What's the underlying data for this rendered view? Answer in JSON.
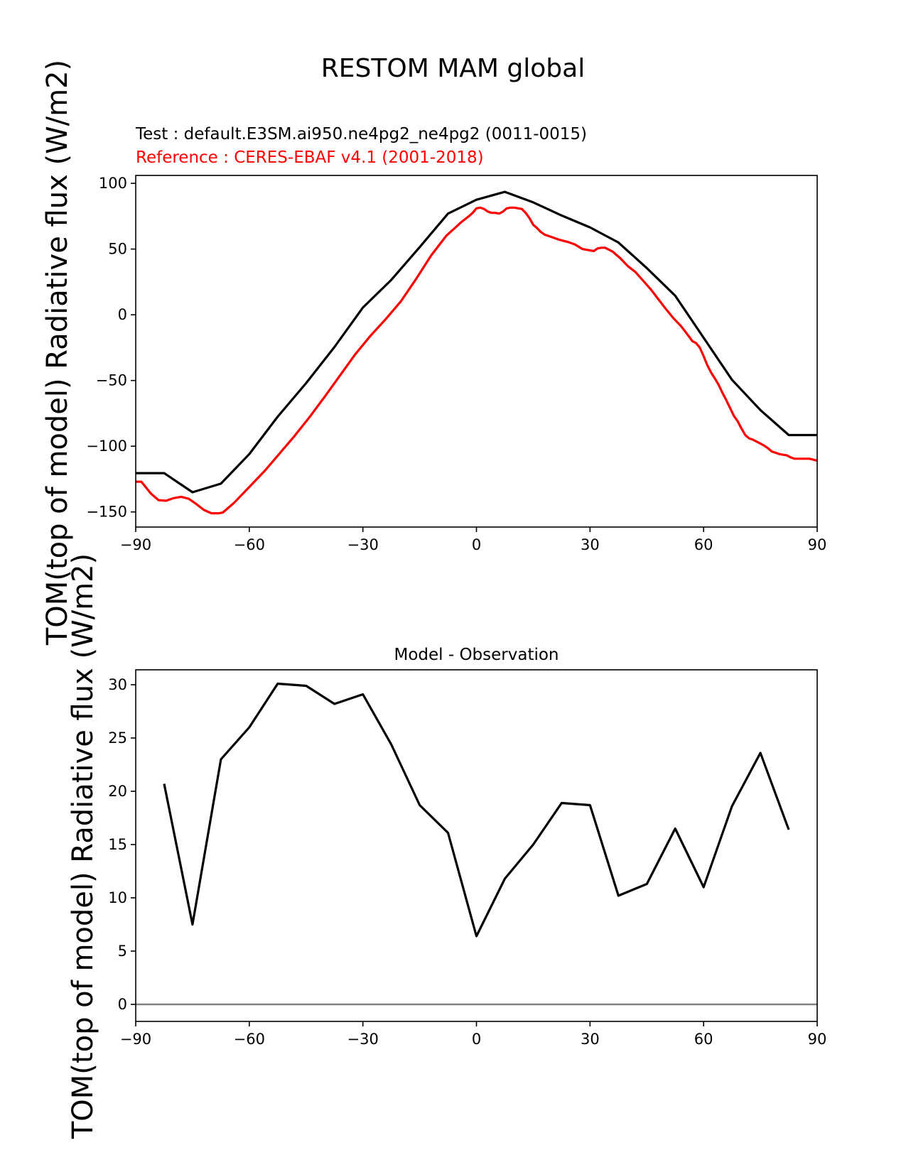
{
  "figure": {
    "title": "RESTOM MAM global"
  },
  "legend": {
    "test_label": "Test : default.E3SM.ai950.ne4pg2_ne4pg2 (0011-0015)",
    "reference_label": "Reference : CERES-EBAF v4.1 (2001-2018)"
  },
  "colors": {
    "test": "#000000",
    "reference": "#ff0000",
    "zero_line": "#808080"
  },
  "chart_data": [
    {
      "type": "line",
      "title": "",
      "xlabel": "",
      "ylabel": "TOM(top of model) Radiative flux (W/m2)",
      "xlim": [
        -90,
        90
      ],
      "ylim": [
        -161.5,
        106
      ],
      "xticks": [
        -90,
        -60,
        -30,
        0,
        30,
        60,
        90
      ],
      "xtick_labels": [
        "−90",
        "−60",
        "−30",
        "0",
        "30",
        "60",
        "90"
      ],
      "yticks": [
        100,
        50,
        0,
        -50,
        -100,
        -150
      ],
      "ytick_labels": [
        "100",
        "50",
        "0",
        "−50",
        "−100",
        "−150"
      ],
      "series": [
        {
          "name": "Test : default.E3SM.ai950.ne4pg2_ne4pg2 (0011-0015)",
          "color": "#000000",
          "x": [
            -90,
            -82.5,
            -75,
            -67.5,
            -60,
            -52.5,
            -45,
            -37.5,
            -30,
            -22.5,
            -15,
            -7.5,
            0,
            7.5,
            15,
            22.5,
            30,
            37.5,
            45,
            52.5,
            60,
            67.5,
            75,
            82.5,
            90
          ],
          "y": [
            -120.5,
            -120.5,
            -135,
            -128.5,
            -106,
            -77.5,
            -52,
            -24.5,
            5.5,
            26.5,
            51.5,
            77,
            87.5,
            93.5,
            85.5,
            75.5,
            66.5,
            55,
            35.5,
            14.5,
            -17.5,
            -49.5,
            -72.5,
            -91.5,
            -91.5
          ]
        },
        {
          "name": "Reference : CERES-EBAF v4.1 (2001-2018)",
          "color": "#ff0000",
          "x": [
            -90,
            -88.5,
            -86,
            -84,
            -82,
            -80,
            -78,
            -76,
            -74,
            -72,
            -70,
            -68,
            -67,
            -66,
            -64,
            -62,
            -60,
            -56,
            -52,
            -48,
            -44,
            -40,
            -36,
            -32,
            -28,
            -24,
            -20,
            -16,
            -12,
            -8,
            -4,
            -2,
            -1,
            0,
            1,
            2,
            3,
            4,
            5,
            6,
            7,
            8,
            9,
            10,
            11,
            12,
            13,
            14,
            15,
            16,
            17,
            18,
            19,
            20,
            22,
            24,
            26,
            28,
            29,
            30,
            31,
            32,
            33,
            34,
            35,
            36,
            37,
            38,
            40,
            42,
            44,
            46,
            48,
            50,
            52,
            54,
            56,
            57,
            58,
            59,
            60,
            61,
            62,
            63,
            64,
            65,
            66,
            67,
            68,
            69,
            70,
            71,
            72,
            73,
            74,
            75,
            76,
            77,
            78,
            79,
            80,
            81,
            82,
            83,
            84,
            86,
            88,
            90
          ],
          "y": [
            -127,
            -127,
            -136,
            -141,
            -141.5,
            -139.5,
            -138.5,
            -140,
            -144,
            -148.5,
            -151,
            -151,
            -150.5,
            -148,
            -143,
            -137,
            -131,
            -119,
            -105.5,
            -92,
            -77.5,
            -62,
            -46,
            -30,
            -16,
            -3.5,
            10,
            27,
            45,
            60,
            70.5,
            75,
            77.5,
            81,
            81.5,
            80.5,
            78.5,
            77.5,
            77.5,
            77,
            78.5,
            81,
            81.5,
            81.5,
            81,
            80.5,
            77.5,
            73.5,
            68.5,
            66,
            63,
            61,
            60,
            59,
            57,
            55.5,
            53.5,
            50,
            49.5,
            49,
            48.5,
            50.5,
            51,
            51,
            49.5,
            48,
            45.5,
            43,
            37,
            32.5,
            26,
            19.5,
            12,
            4.5,
            -2.5,
            -8.5,
            -16,
            -20,
            -21.5,
            -25,
            -31.5,
            -38.5,
            -44,
            -48.5,
            -53.5,
            -59.5,
            -65,
            -71,
            -77,
            -81,
            -86.5,
            -91.5,
            -94,
            -95,
            -96.5,
            -98,
            -99.5,
            -101.5,
            -104,
            -105,
            -106,
            -106.5,
            -107,
            -108.5,
            -109.5,
            -109.5,
            -109.5,
            -111
          ]
        }
      ]
    },
    {
      "type": "line",
      "title": "Model - Observation",
      "xlabel": "",
      "ylabel": "TOM(top of model) Radiative flux (W/m2)",
      "xlim": [
        -90,
        90
      ],
      "ylim": [
        -1.6,
        31.4
      ],
      "xticks": [
        -90,
        -60,
        -30,
        0,
        30,
        60,
        90
      ],
      "xtick_labels": [
        "−90",
        "−60",
        "−30",
        "0",
        "30",
        "60",
        "90"
      ],
      "yticks": [
        30,
        25,
        20,
        15,
        10,
        5,
        0
      ],
      "ytick_labels": [
        "30",
        "25",
        "20",
        "15",
        "10",
        "5",
        "0"
      ],
      "series": [
        {
          "name": "Model - Observation",
          "color": "#000000",
          "x": [
            -82.5,
            -75,
            -67.5,
            -60,
            -52.5,
            -45,
            -37.5,
            -30,
            -22.5,
            -15,
            -7.5,
            0,
            7.5,
            15,
            22.5,
            30,
            37.5,
            45,
            52.5,
            60,
            67.5,
            75,
            82.5
          ],
          "y": [
            20.7,
            7.5,
            23,
            26,
            30.1,
            29.9,
            28.2,
            29.1,
            24.4,
            18.7,
            16.1,
            6.4,
            11.8,
            15,
            18.9,
            18.7,
            10.2,
            11.3,
            16.5,
            11,
            18.6,
            23.6,
            16.4
          ]
        }
      ],
      "reference_lines": [
        {
          "name": "zero-line",
          "y": 0,
          "color": "#808080"
        }
      ]
    }
  ]
}
